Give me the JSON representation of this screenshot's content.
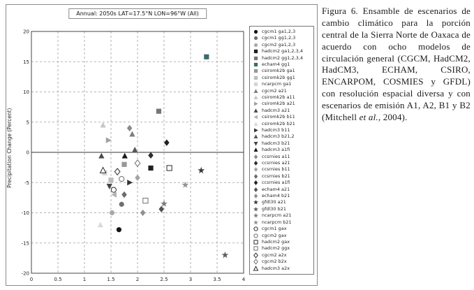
{
  "caption": {
    "part1": "Figura 6. Ensamble de escenarios de cambio climático para la porción central de la Sierra Norte de Oaxaca de acuerdo con ocho modelos de circulación general (CGCM, HadCM2, HadCM3, ECHAM, CSIRO, ENCARPOM, COSMIES y GFDL) con resolución espacial diversa y con escenarios de emisión A1, A2, B1 y B2 (Mitchell ",
    "italic": "et al.",
    "part2": ", 2004)."
  },
  "chart_data": {
    "type": "scatter",
    "title": "Annual: 2050s LAT=17.5°N LON=96°W (All)",
    "xlabel": "",
    "ylabel": "Precipitation Change (Percent)",
    "xlim": [
      0,
      4
    ],
    "ylim": [
      -20,
      20
    ],
    "xticks": [
      0,
      0.5,
      1,
      1.5,
      2,
      2.5,
      3,
      3.5,
      4
    ],
    "yticks": [
      20,
      15,
      10,
      5,
      0,
      -5,
      -10,
      -15,
      -20
    ],
    "grid": "dashed",
    "zero_line": true,
    "legend_position": "right-outside",
    "series": [
      {
        "label": "cgcm1 ga1,2,3",
        "marker": "circle",
        "color": "#141414",
        "open": false,
        "points": [
          [
            1.65,
            -12.8
          ]
        ]
      },
      {
        "label": "cgcm1 gg1,2,3",
        "marker": "circle",
        "color": "#6f6f6f",
        "open": false,
        "points": [
          [
            1.7,
            -8.6
          ]
        ]
      },
      {
        "label": "cgcm2 ga1,2,3",
        "marker": "circle",
        "color": "#a9a9a9",
        "open": false,
        "points": [
          [
            1.52,
            -10.0
          ]
        ]
      },
      {
        "label": "hadcm2 ga1,2,3,4",
        "marker": "square",
        "color": "#1f1f1f",
        "open": false,
        "points": [
          [
            2.25,
            -2.6
          ]
        ]
      },
      {
        "label": "hadcm2 gg1,2,3,4",
        "marker": "square",
        "color": "#767676",
        "open": false,
        "points": [
          [
            2.4,
            6.8
          ]
        ]
      },
      {
        "label": "echam4 gg1",
        "marker": "square",
        "color": "#3e6a6c",
        "open": false,
        "points": [
          [
            3.3,
            15.8
          ]
        ]
      },
      {
        "label": "csiromk2b ga1",
        "marker": "square",
        "color": "#989898",
        "open": false,
        "points": [
          [
            1.75,
            -2.0
          ]
        ]
      },
      {
        "label": "csiromk2b gg1",
        "marker": "square",
        "color": "#bcbcbc",
        "open": false,
        "points": [
          [
            1.5,
            -4.6
          ]
        ]
      },
      {
        "label": "ncarpcm ga1",
        "marker": "square",
        "color": "#d3d3d3",
        "open": false,
        "points": [
          [
            1.38,
            -3.4
          ]
        ]
      },
      {
        "label": "cgcm2 a21",
        "marker": "triangle-up",
        "color": "#7d7d7d",
        "open": false,
        "points": [
          [
            1.9,
            3.0
          ]
        ]
      },
      {
        "label": "csiromk2b a11",
        "marker": "triangle-up",
        "color": "#c7c7c7",
        "open": false,
        "points": [
          [
            1.35,
            4.5
          ]
        ]
      },
      {
        "label": "csiromk2b a21",
        "marker": "triangle-right",
        "color": "#a0a0a0",
        "open": false,
        "points": [
          [
            1.45,
            2.0
          ]
        ]
      },
      {
        "label": "hadcm3 a21",
        "marker": "triangle-up",
        "color": "#4a4a4a",
        "open": false,
        "points": [
          [
            1.32,
            -0.6
          ]
        ]
      },
      {
        "label": "csiromk2b b11",
        "marker": "triangle-left",
        "color": "#b3b3b3",
        "open": false,
        "points": [
          [
            1.56,
            -7.0
          ]
        ]
      },
      {
        "label": "csiromk2b b21",
        "marker": "triangle-up",
        "color": "#dadada",
        "open": false,
        "points": [
          [
            1.3,
            -12.0
          ]
        ]
      },
      {
        "label": "hadcm3 b11",
        "marker": "triangle-right",
        "color": "#333333",
        "open": false,
        "points": [
          [
            1.85,
            -5.0
          ]
        ]
      },
      {
        "label": "hadcm3 b21,2",
        "marker": "triangle-up",
        "color": "#565656",
        "open": false,
        "points": [
          [
            1.95,
            0.4
          ]
        ]
      },
      {
        "label": "hadcm3 b21",
        "marker": "triangle-down",
        "color": "#454545",
        "open": false,
        "points": [
          [
            1.47,
            -5.6
          ]
        ]
      },
      {
        "label": "hadcm3 a1fi",
        "marker": "triangle-up",
        "color": "#171717",
        "open": false,
        "points": [
          [
            1.76,
            -0.6
          ]
        ]
      },
      {
        "label": "ccsrnies a11",
        "marker": "diamond",
        "color": "#8a8a8a",
        "open": false,
        "points": [
          [
            1.85,
            4.0
          ]
        ]
      },
      {
        "label": "ccsrnies a21",
        "marker": "diamond",
        "color": "#2e2e2e",
        "open": false,
        "points": [
          [
            2.25,
            -0.5
          ]
        ]
      },
      {
        "label": "ccsrnies b11",
        "marker": "diamond",
        "color": "#a4a4a4",
        "open": false,
        "points": [
          [
            2.0,
            -4.2
          ]
        ]
      },
      {
        "label": "ccsrnies b21",
        "marker": "diamond",
        "color": "#6b6b6b",
        "open": false,
        "points": [
          [
            1.75,
            -7.0
          ]
        ]
      },
      {
        "label": "ccsrnies a1fi",
        "marker": "diamond",
        "color": "#202020",
        "open": false,
        "points": [
          [
            2.55,
            1.6
          ]
        ]
      },
      {
        "label": "echam4 a21",
        "marker": "diamond",
        "color": "#525252",
        "open": false,
        "points": [
          [
            2.45,
            -9.4
          ]
        ]
      },
      {
        "label": "echam4 b21",
        "marker": "diamond",
        "color": "#909090",
        "open": false,
        "points": [
          [
            2.1,
            -10.0
          ]
        ]
      },
      {
        "label": "gfdl30 a21",
        "marker": "star",
        "color": "#3c3c3c",
        "open": false,
        "points": [
          [
            3.2,
            -3.0
          ]
        ]
      },
      {
        "label": "gfdl30 b21",
        "marker": "star",
        "color": "#5f5f5f",
        "open": false,
        "points": [
          [
            3.65,
            -17.0
          ]
        ]
      },
      {
        "label": "ncarpcm a21",
        "marker": "star",
        "color": "#7b7b7b",
        "open": false,
        "points": [
          [
            2.5,
            -8.5
          ]
        ]
      },
      {
        "label": "ncarpcm b21",
        "marker": "star",
        "color": "#949494",
        "open": false,
        "points": [
          [
            2.9,
            -5.4
          ]
        ]
      },
      {
        "label": "cgcm1 gax",
        "marker": "circle",
        "color": "#2b2b2b",
        "open": true,
        "points": [
          [
            1.55,
            -6.2
          ]
        ]
      },
      {
        "label": "cgcm2 gax",
        "marker": "circle",
        "color": "#6f6f6f",
        "open": true,
        "points": [
          [
            1.7,
            -4.4
          ]
        ]
      },
      {
        "label": "hadcm2 gax",
        "marker": "square",
        "color": "#2b2b2b",
        "open": true,
        "points": [
          [
            2.6,
            -2.6
          ]
        ]
      },
      {
        "label": "hadcm2 ggx",
        "marker": "square",
        "color": "#6f6f6f",
        "open": true,
        "points": [
          [
            2.15,
            -8.0
          ]
        ]
      },
      {
        "label": "cgcm2 a2x",
        "marker": "diamond",
        "color": "#2b2b2b",
        "open": true,
        "points": [
          [
            1.62,
            -3.2
          ]
        ]
      },
      {
        "label": "cgcm2 b2x",
        "marker": "diamond",
        "color": "#6f6f6f",
        "open": true,
        "points": [
          [
            2.0,
            -1.8
          ]
        ]
      },
      {
        "label": "hadcm3 a2x",
        "marker": "triangle-up",
        "color": "#2b2b2b",
        "open": true,
        "points": [
          [
            1.35,
            -3.0
          ]
        ]
      }
    ]
  }
}
